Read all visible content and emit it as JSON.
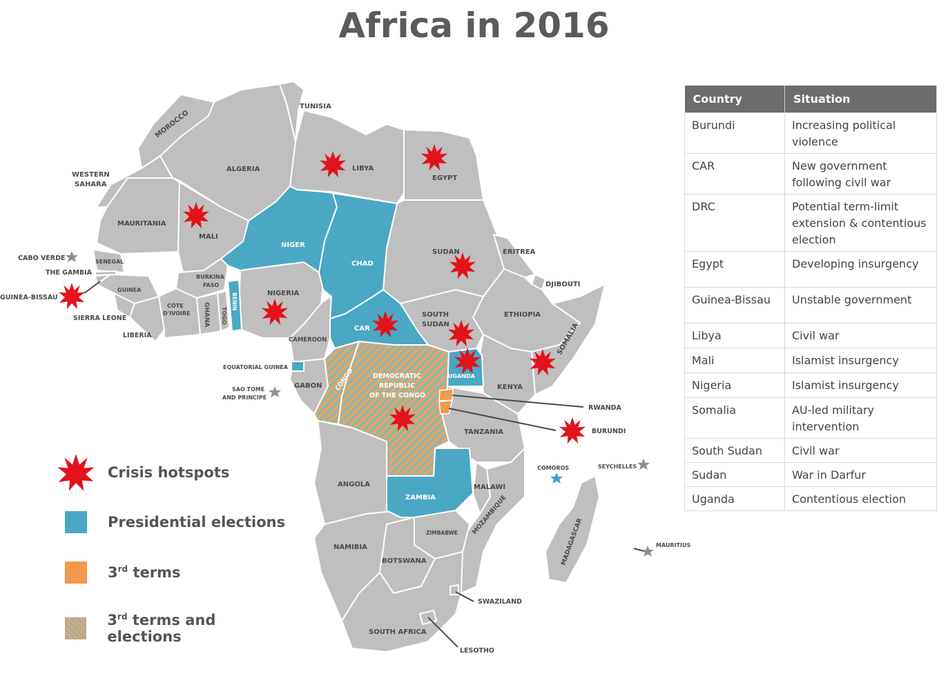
{
  "title": "Africa in 2016",
  "colors": {
    "land": "#bfbfbf",
    "presidential": "#4aa8c4",
    "third_term": "#f2994a",
    "hotspot": "#e3121b",
    "star": "#8f8f8f",
    "star_highlight": "#3aa0cc"
  },
  "legend": {
    "crisis": "Crisis hotspots",
    "presidential": "Presidential elections",
    "third_prefix": "3",
    "third_sup": "rd",
    "third_suffix": " terms",
    "both_prefix": "3",
    "both_sup": "rd",
    "both_suffix": " terms and elections"
  },
  "map_labels": {
    "tunisia": "TUNISIA",
    "morocco": "MOROCCO",
    "algeria": "ALGERIA",
    "libya": "LIBYA",
    "egypt": "EGYPT",
    "western_sahara_1": "WESTERN",
    "western_sahara_2": "SAHARA",
    "mauritania": "MAURITANIA",
    "mali": "MALI",
    "niger": "NIGER",
    "chad": "CHAD",
    "sudan": "SUDAN",
    "eritrea": "ERITREA",
    "djibouti": "DJIBOUTI",
    "ethiopia": "ETHIOPIA",
    "somalia": "SOMALIA",
    "cabo_verde": "CABO VERDE",
    "senegal": "SENEGAL",
    "the_gambia": "THE GAMBIA",
    "guinea_bissau": "GUINEA-BISSAU",
    "guinea": "GUINEA",
    "sierra_leone": "SIERRA LEONE",
    "liberia": "LIBERIA",
    "cote_1": "CÔTE",
    "cote_2": "D'IVOIRE",
    "burkina_1": "BURKINA",
    "burkina_2": "FASO",
    "ghana": "GHANA",
    "togo": "TOGO",
    "benin": "BENIN",
    "nigeria": "NIGERIA",
    "cameroon": "CAMEROON",
    "car": "CAR",
    "south_sudan_1": "SOUTH",
    "south_sudan_2": "SUDAN",
    "uganda": "UGANDA",
    "kenya": "KENYA",
    "equatorial_guinea": "EQUATORIAL GUINEA",
    "sao_tome_1": "SAO TOME",
    "sao_tome_2": "AND PRINCIPE",
    "gabon": "GABON",
    "congo": "CONGO",
    "drc_1": "DEMOCRATIC",
    "drc_2": "REPUBLIC",
    "drc_3": "OF THE CONGO",
    "rwanda": "RWANDA",
    "burundi": "BURUNDI",
    "tanzania": "TANZANIA",
    "angola": "ANGOLA",
    "zambia": "ZAMBIA",
    "malawi": "MALAWI",
    "comoros": "COMOROS",
    "seychelles": "SEYCHELLES",
    "mozambique": "MOZAMBIQUE",
    "zimbabwe": "ZIMBABWE",
    "madagascar": "MADAGASCAR",
    "mauritius": "MAURITIUS",
    "namibia": "NAMIBIA",
    "botswana": "BOTSWANA",
    "swaziland": "SWAZILAND",
    "south_africa": "SOUTH AFRICA",
    "lesotho": "LESOTHO"
  },
  "table": {
    "headers": [
      "Country",
      "Situation"
    ],
    "rows": [
      {
        "country": "Burundi",
        "situation": "Increasing political violence"
      },
      {
        "country": "CAR",
        "situation": "New government following civil war"
      },
      {
        "country": "DRC",
        "situation": "Potential term-limit extension & contentious election"
      },
      {
        "country": "Egypt",
        "situation": "Developing insurgency"
      },
      {
        "country": "Guinea-Bissau",
        "situation": "Unstable government"
      },
      {
        "country": "Libya",
        "situation": "Civil war"
      },
      {
        "country": "Mali",
        "situation": "Islamist insurgency"
      },
      {
        "country": "Nigeria",
        "situation": "Islamist insurgency"
      },
      {
        "country": "Somalia",
        "situation": "AU-led military intervention"
      },
      {
        "country": "South Sudan",
        "situation": "Civil war"
      },
      {
        "country": "Sudan",
        "situation": "War in Darfur"
      },
      {
        "country": "Uganda",
        "situation": "Contentious election"
      }
    ]
  }
}
